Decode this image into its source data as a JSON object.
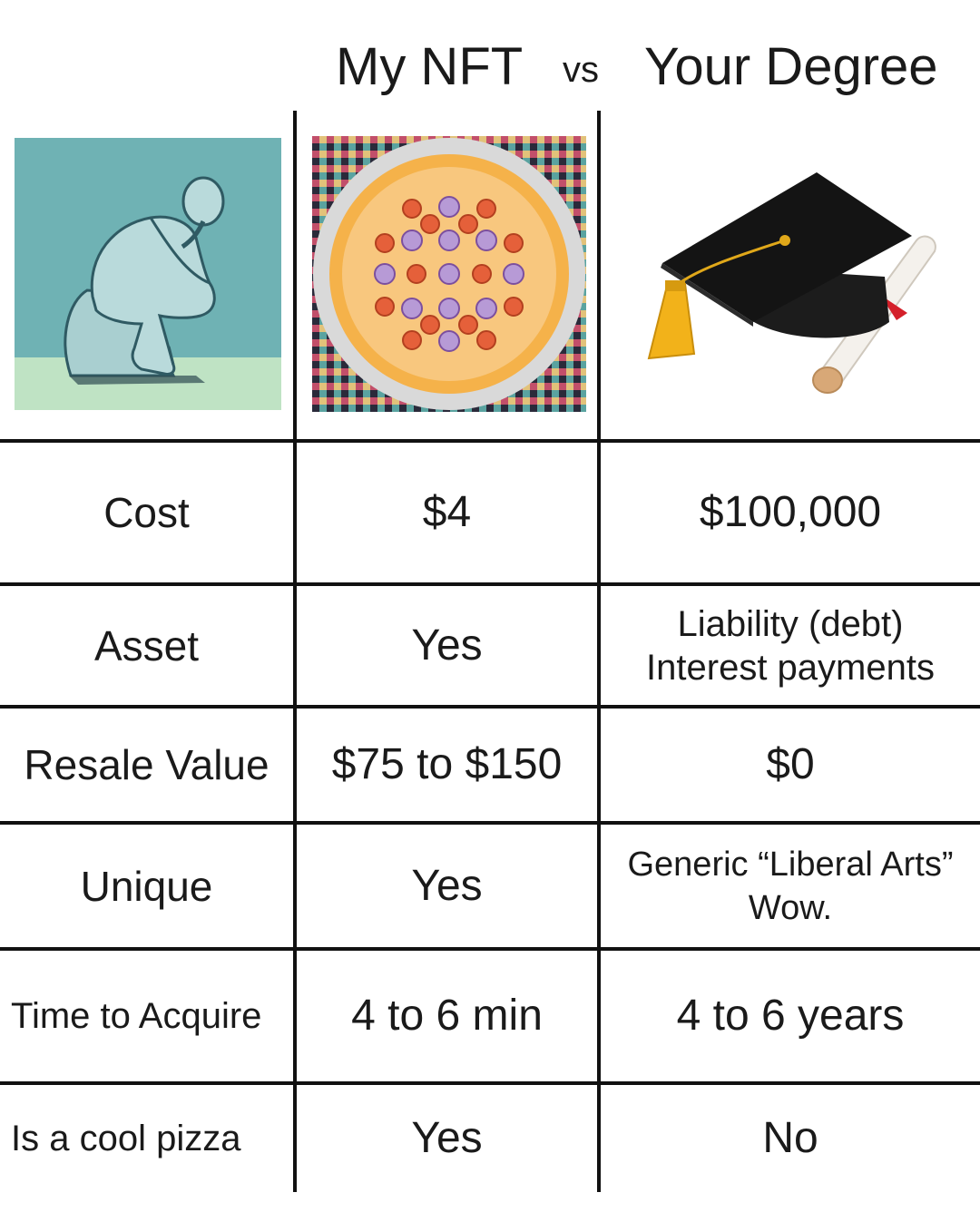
{
  "header": {
    "col1_title": "My NFT",
    "vs": "vs",
    "col2_title": "Your Degree"
  },
  "images": {
    "row_image": "thinker-statue",
    "col1_image": "pizza-nft",
    "col2_image": "graduation-cap-diploma"
  },
  "rows": [
    {
      "label": "Cost",
      "nft": "$4",
      "degree_line1": "$100,000",
      "degree_line2": ""
    },
    {
      "label": "Asset",
      "nft": "Yes",
      "degree_line1": "Liability (debt)",
      "degree_line2": "Interest payments"
    },
    {
      "label": "Resale Value",
      "nft": "$75 to $150",
      "degree_line1": "$0",
      "degree_line2": ""
    },
    {
      "label": "Unique",
      "nft": "Yes",
      "degree_line1": "Generic “Liberal Arts”",
      "degree_line2": "Wow."
    },
    {
      "label": "Time to Acquire",
      "nft": "4 to 6 min",
      "degree_line1": "4 to 6 years",
      "degree_line2": ""
    },
    {
      "label": "Is a cool pizza",
      "nft": "Yes",
      "degree_line1": "No",
      "degree_line2": ""
    }
  ],
  "colors": {
    "thinker_bg": "#6fb2b4",
    "thinker_floor": "#bfe3c4",
    "pizza_crust": "#f5b24a",
    "cap": "#141414",
    "tassel": "#f2b21a"
  }
}
